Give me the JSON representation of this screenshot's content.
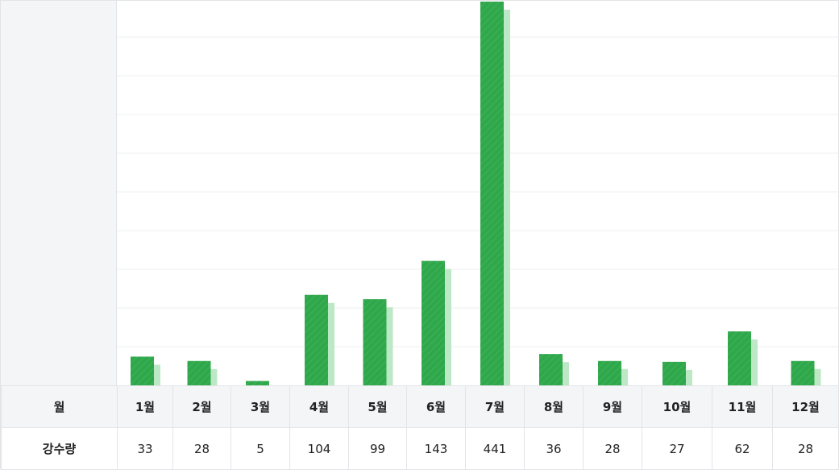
{
  "chart_data": {
    "type": "bar",
    "categories": [
      "1월",
      "2월",
      "3월",
      "4월",
      "5월",
      "6월",
      "7월",
      "8월",
      "9월",
      "10월",
      "11월",
      "12월"
    ],
    "series": [
      {
        "name": "강수량",
        "values": [
          33,
          28,
          5,
          104,
          99,
          143,
          441,
          36,
          28,
          27,
          62,
          28
        ]
      }
    ],
    "grid": true,
    "colors": {
      "bar": "#2ea84a",
      "bar_shadow": "#bde8c5"
    }
  },
  "table": {
    "row_header_month": "월",
    "row_header_value": "강수량",
    "months": [
      "1월",
      "2월",
      "3월",
      "4월",
      "5월",
      "6월",
      "7월",
      "8월",
      "9월",
      "10월",
      "11월",
      "12월"
    ],
    "values": [
      "33",
      "28",
      "5",
      "104",
      "99",
      "143",
      "441",
      "36",
      "28",
      "27",
      "62",
      "28"
    ]
  }
}
